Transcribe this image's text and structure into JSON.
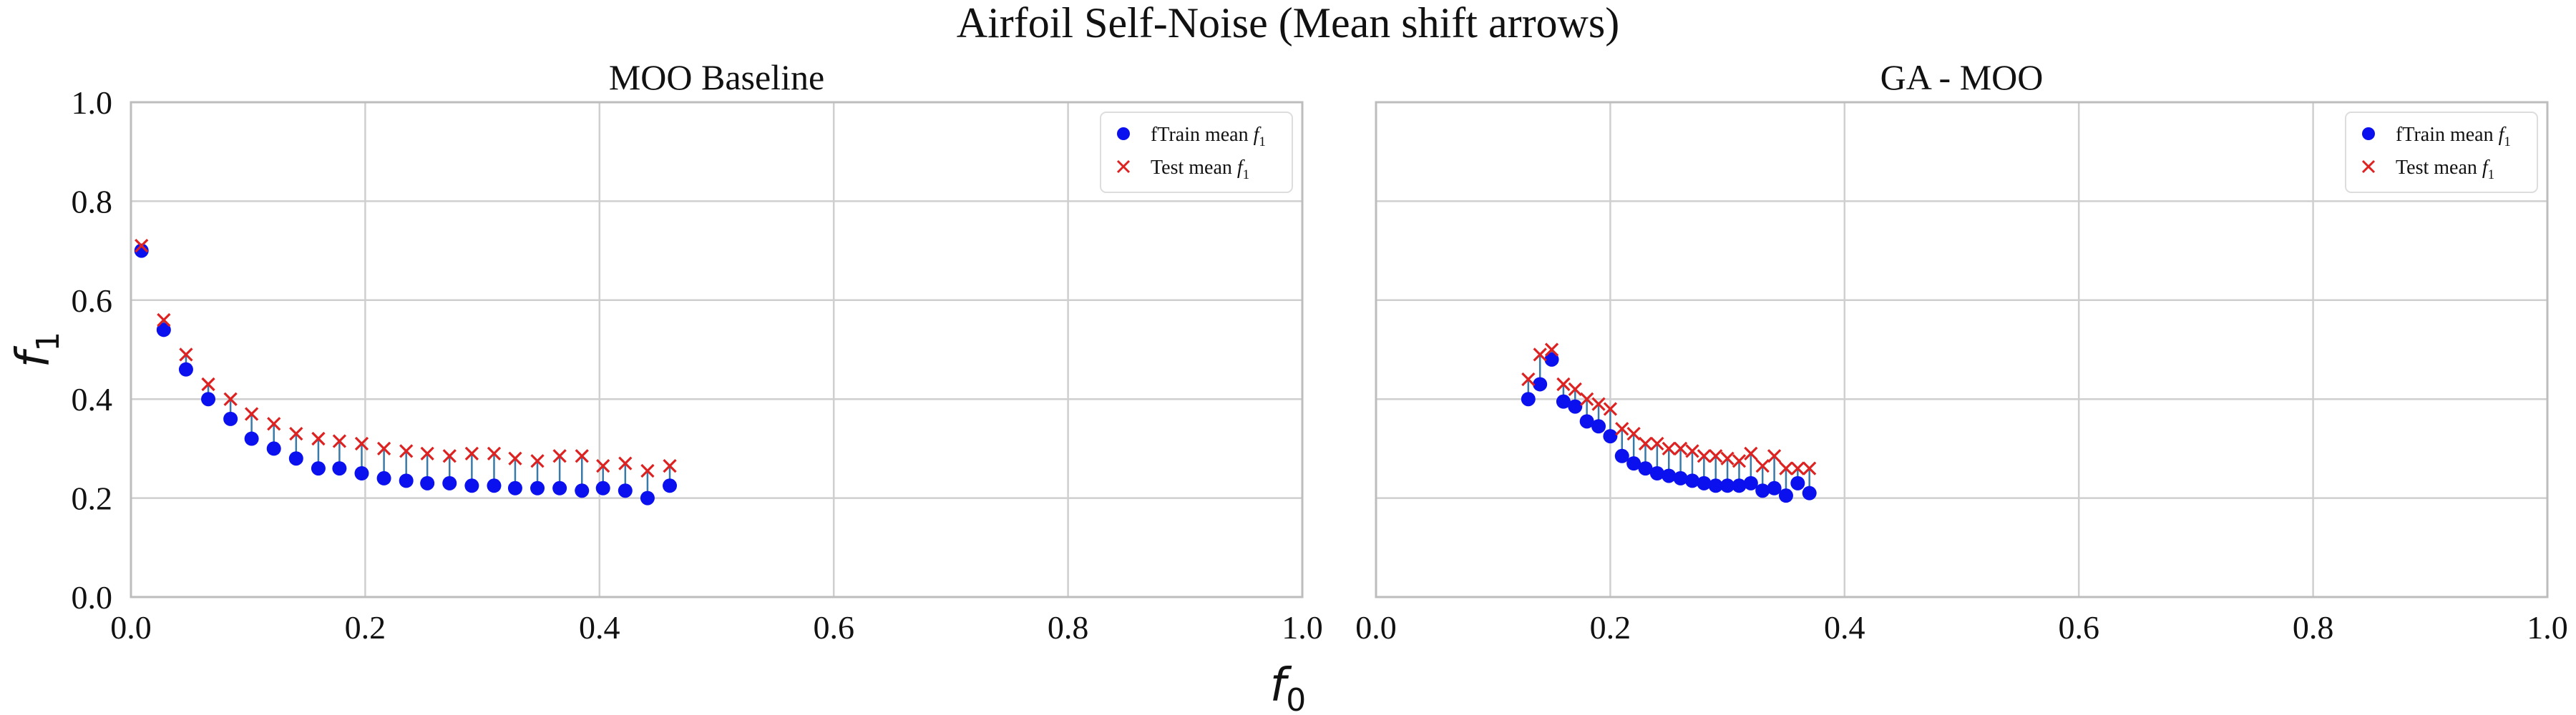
{
  "title": "Airfoil Self-Noise (Mean shift arrows)",
  "colors": {
    "train": "#0a10ee",
    "test": "#dd2222",
    "arrow": "#3a7aa8",
    "grid": "#cfcfcf",
    "axes": "#bdbdbd",
    "text": "#111111"
  },
  "shared_axes": {
    "xlabel": "f",
    "xlabel_sub": "0",
    "ylabel": "f",
    "ylabel_sub": "1",
    "xlim": [
      0,
      1
    ],
    "ylim": [
      0,
      1
    ],
    "ticks": [
      "0.0",
      "0.2",
      "0.4",
      "0.6",
      "0.8",
      "1.0"
    ],
    "grid": true,
    "sharey": true
  },
  "chart_data": [
    {
      "type": "scatter",
      "title": "MOO Baseline",
      "legend": {
        "placement": "top-right",
        "entries": [
          {
            "label": "fTrain mean ",
            "label_var": "f",
            "label_sub": "1",
            "marker": "circle",
            "color": "#0a10ee"
          },
          {
            "label": "Test mean ",
            "label_var": "f",
            "label_sub": "1",
            "marker": "x",
            "color": "#dd2222"
          }
        ]
      },
      "series": [
        {
          "name": "fTrain mean f1",
          "marker": "circle",
          "x": [
            0.009,
            0.028,
            0.047,
            0.066,
            0.085,
            0.103,
            0.122,
            0.141,
            0.16,
            0.178,
            0.197,
            0.216,
            0.235,
            0.253,
            0.272,
            0.291,
            0.31,
            0.328,
            0.347,
            0.366,
            0.385,
            0.403,
            0.422,
            0.441,
            0.46
          ],
          "y": [
            0.7,
            0.54,
            0.46,
            0.4,
            0.36,
            0.32,
            0.3,
            0.28,
            0.26,
            0.26,
            0.25,
            0.24,
            0.235,
            0.23,
            0.23,
            0.225,
            0.225,
            0.22,
            0.22,
            0.22,
            0.215,
            0.22,
            0.215,
            0.2,
            0.225
          ]
        },
        {
          "name": "Test mean f1",
          "marker": "x",
          "x": [
            0.009,
            0.028,
            0.047,
            0.066,
            0.085,
            0.103,
            0.122,
            0.141,
            0.16,
            0.178,
            0.197,
            0.216,
            0.235,
            0.253,
            0.272,
            0.291,
            0.31,
            0.328,
            0.347,
            0.366,
            0.385,
            0.403,
            0.422,
            0.441,
            0.46
          ],
          "y": [
            0.71,
            0.56,
            0.49,
            0.43,
            0.4,
            0.37,
            0.35,
            0.33,
            0.32,
            0.315,
            0.31,
            0.3,
            0.295,
            0.29,
            0.285,
            0.29,
            0.29,
            0.28,
            0.275,
            0.285,
            0.285,
            0.265,
            0.27,
            0.255,
            0.265
          ]
        }
      ]
    },
    {
      "type": "scatter",
      "title": "GA - MOO",
      "legend": {
        "placement": "top-right",
        "entries": [
          {
            "label": "fTrain mean ",
            "label_var": "f",
            "label_sub": "1",
            "marker": "circle",
            "color": "#0a10ee"
          },
          {
            "label": "Test mean ",
            "label_var": "f",
            "label_sub": "1",
            "marker": "x",
            "color": "#dd2222"
          }
        ]
      },
      "series": [
        {
          "name": "fTrain mean f1",
          "marker": "circle",
          "x": [
            0.13,
            0.14,
            0.15,
            0.16,
            0.17,
            0.18,
            0.19,
            0.2,
            0.21,
            0.22,
            0.23,
            0.24,
            0.25,
            0.26,
            0.27,
            0.28,
            0.29,
            0.3,
            0.31,
            0.32,
            0.33,
            0.34,
            0.35,
            0.36,
            0.37
          ],
          "y": [
            0.4,
            0.43,
            0.48,
            0.395,
            0.385,
            0.355,
            0.345,
            0.325,
            0.285,
            0.27,
            0.26,
            0.25,
            0.245,
            0.24,
            0.235,
            0.23,
            0.225,
            0.225,
            0.225,
            0.23,
            0.215,
            0.22,
            0.205,
            0.23,
            0.21
          ]
        },
        {
          "name": "Test mean f1",
          "marker": "x",
          "x": [
            0.13,
            0.14,
            0.15,
            0.16,
            0.17,
            0.18,
            0.19,
            0.2,
            0.21,
            0.22,
            0.23,
            0.24,
            0.25,
            0.26,
            0.27,
            0.28,
            0.29,
            0.3,
            0.31,
            0.32,
            0.33,
            0.34,
            0.35,
            0.36,
            0.37
          ],
          "y": [
            0.44,
            0.49,
            0.5,
            0.43,
            0.42,
            0.4,
            0.39,
            0.38,
            0.34,
            0.33,
            0.31,
            0.31,
            0.3,
            0.3,
            0.295,
            0.285,
            0.285,
            0.28,
            0.275,
            0.29,
            0.265,
            0.285,
            0.26,
            0.26,
            0.26
          ]
        }
      ]
    }
  ]
}
